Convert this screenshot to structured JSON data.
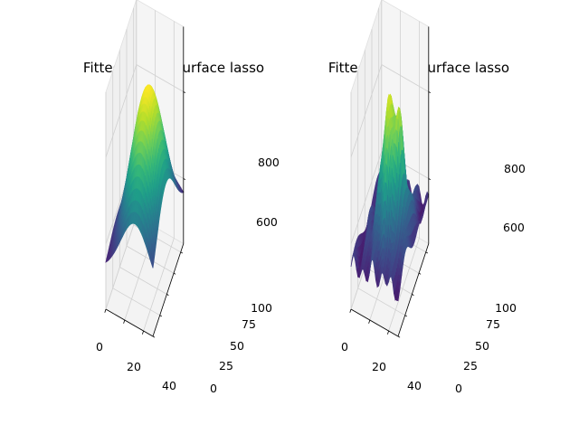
{
  "chart_data": [
    {
      "type": "surface3d",
      "title": "Fitted terrain surface lasso",
      "x_ticks": [
        "0",
        "20",
        "40"
      ],
      "y_ticks": [
        "0",
        "25",
        "50",
        "75",
        "100"
      ],
      "z_ticks": [
        "600",
        "800"
      ],
      "xlim": [
        0,
        50
      ],
      "ylim": [
        0,
        110
      ],
      "zlim": [
        450,
        950
      ],
      "colormap": "viridis",
      "surface": {
        "kind": "smooth-dome",
        "z_min": 520,
        "z_max": 910
      }
    },
    {
      "type": "surface3d",
      "title": "Fitted terrain surface lasso",
      "x_ticks": [
        "0",
        "20",
        "40"
      ],
      "y_ticks": [
        "0",
        "25",
        "50",
        "75",
        "100"
      ],
      "z_ticks": [
        "600",
        "800"
      ],
      "xlim": [
        0,
        50
      ],
      "ylim": [
        0,
        110
      ],
      "zlim": [
        450,
        950
      ],
      "colormap": "viridis",
      "surface": {
        "kind": "bumpy-peak",
        "z_min": 500,
        "z_max": 900
      }
    }
  ]
}
